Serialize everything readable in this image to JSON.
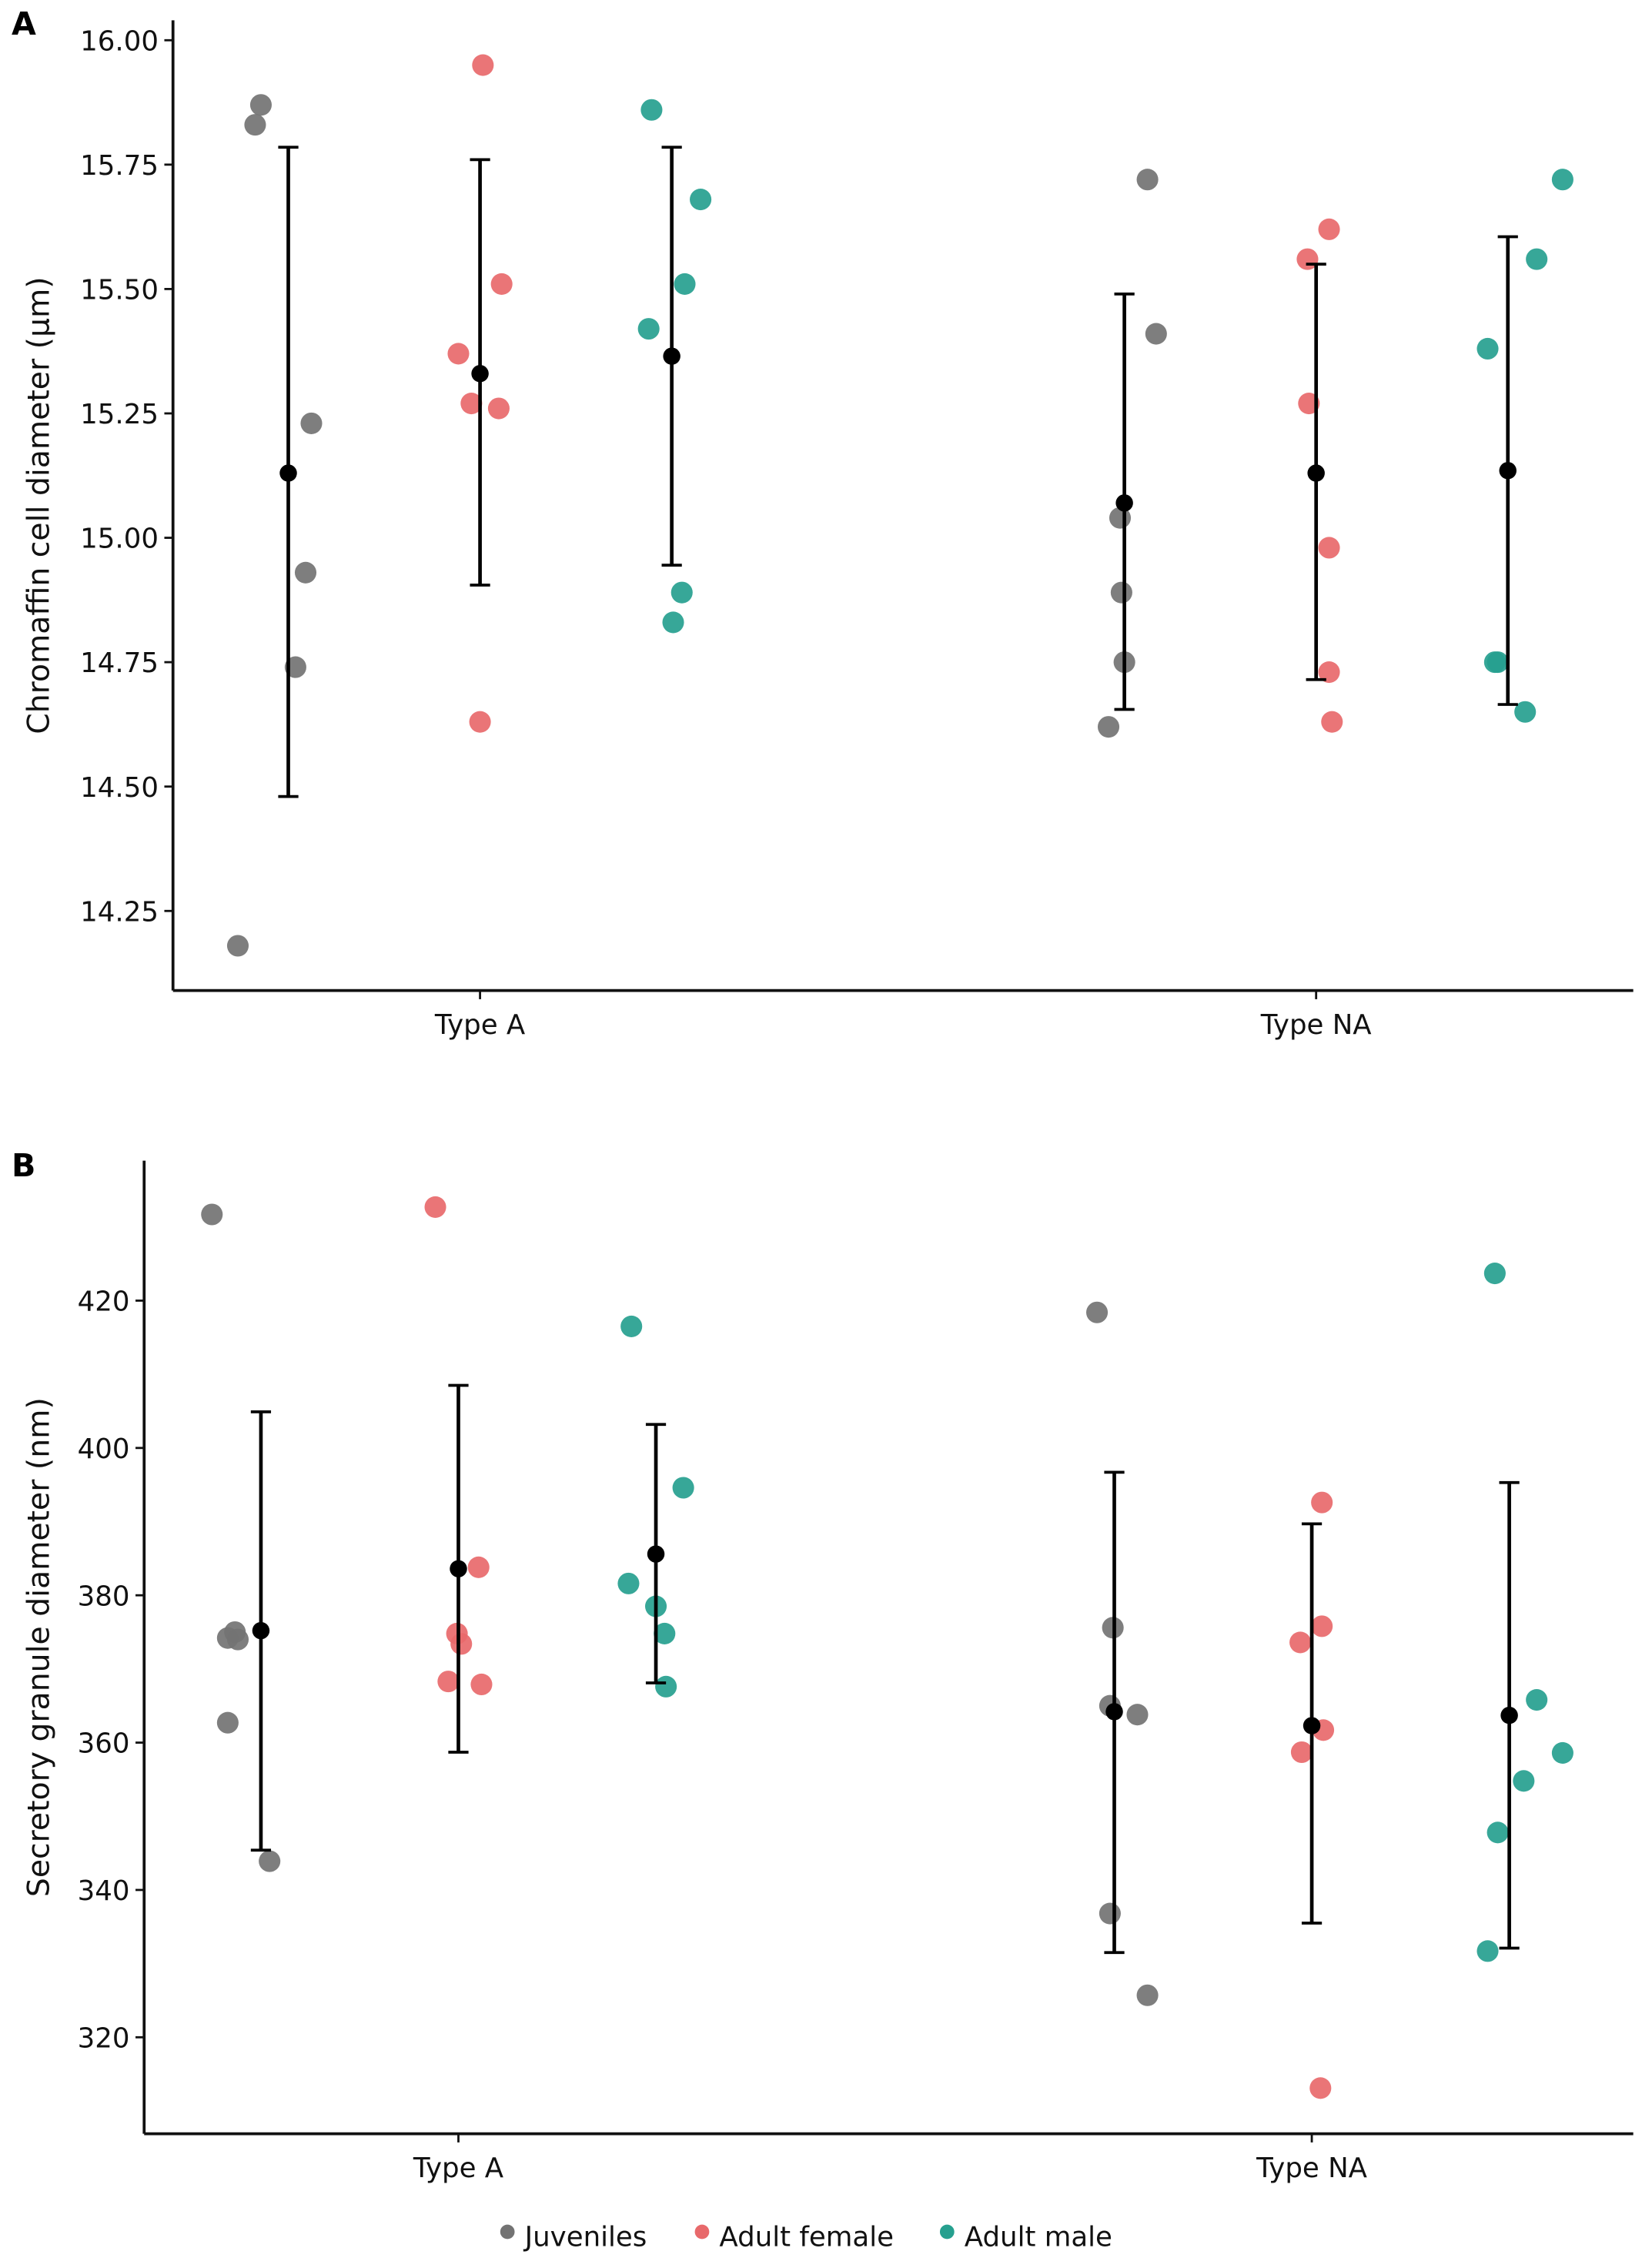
{
  "chart_data": [
    {
      "type": "scatter",
      "panel_label": "A",
      "ylabel": "Chromaffin cell diameter (µm)",
      "xlabel": "",
      "ylim": [
        14.09,
        16.04
      ],
      "yticks": [
        "14.25",
        "14.50",
        "14.75",
        "15.00",
        "15.25",
        "15.50",
        "15.75",
        "16.00"
      ],
      "categories": [
        "Type A",
        "Type NA"
      ],
      "series": [
        {
          "name": "Juveniles",
          "color": "#737373",
          "points": [
            [
              15.87,
              15.83,
              15.23,
              14.93,
              14.74,
              14.18
            ],
            [
              15.72,
              15.41,
              15.04,
              14.89,
              14.75,
              14.62
            ]
          ],
          "mean": [
            15.13,
            15.07
          ],
          "err_low": [
            14.48,
            14.655
          ],
          "err_high": [
            15.785,
            15.49
          ]
        },
        {
          "name": "Adult female",
          "color": "#e8696b",
          "points": [
            [
              15.95,
              15.51,
              15.37,
              15.27,
              15.26,
              14.63
            ],
            [
              15.62,
              15.56,
              15.27,
              14.98,
              14.73,
              14.63
            ]
          ],
          "mean": [
            15.33,
            15.13
          ],
          "err_low": [
            14.905,
            14.715
          ],
          "err_high": [
            15.76,
            15.55
          ]
        },
        {
          "name": "Adult male",
          "color": "#26a08f",
          "points": [
            [
              15.86,
              15.68,
              15.51,
              15.42,
              14.89,
              14.83
            ],
            [
              15.72,
              15.56,
              15.38,
              14.75,
              14.75,
              14.65
            ]
          ],
          "mean": [
            15.365,
            15.135
          ],
          "err_low": [
            14.945,
            14.665
          ],
          "err_high": [
            15.785,
            15.605
          ]
        }
      ]
    },
    {
      "type": "scatter",
      "panel_label": "B",
      "ylabel": "Secretory granule diameter (nm)",
      "xlabel": "",
      "ylim": [
        306.9,
        439
      ],
      "yticks": [
        "320",
        "340",
        "360",
        "380",
        "400",
        "420"
      ],
      "categories": [
        "Type A",
        "Type NA"
      ],
      "series": [
        {
          "name": "Juveniles",
          "color": "#737373",
          "points": [
            [
              431.7,
              375.0,
              374.2,
              374.0,
              362.7,
              343.9
            ],
            [
              418.4,
              375.6,
              365.0,
              363.8,
              336.8,
              325.7
            ]
          ],
          "mean": [
            375.2,
            364.2
          ],
          "err_low": [
            345.4,
            331.5
          ],
          "err_high": [
            404.9,
            396.7
          ]
        },
        {
          "name": "Adult female",
          "color": "#e8696b",
          "points": [
            [
              432.7,
              383.8,
              374.8,
              373.4,
              368.3,
              367.9
            ],
            [
              392.6,
              375.8,
              373.6,
              361.7,
              358.7,
              313.1
            ]
          ],
          "mean": [
            383.6,
            362.3
          ],
          "err_low": [
            358.7,
            335.5
          ],
          "err_high": [
            408.5,
            389.7
          ]
        },
        {
          "name": "Adult male",
          "color": "#26a08f",
          "points": [
            [
              416.5,
              394.6,
              381.6,
              378.5,
              374.8,
              367.6
            ],
            [
              423.7,
              365.8,
              358.6,
              354.8,
              347.8,
              331.7
            ]
          ],
          "mean": [
            385.6,
            363.7
          ],
          "err_low": [
            368.1,
            332.1
          ],
          "err_high": [
            403.2,
            395.3
          ]
        }
      ]
    }
  ],
  "legend": {
    "placement": "bottom-center",
    "items": [
      {
        "label": "Juveniles",
        "color": "#737373"
      },
      {
        "label": "Adult female",
        "color": "#e8696b"
      },
      {
        "label": "Adult male",
        "color": "#26a08f"
      }
    ]
  }
}
